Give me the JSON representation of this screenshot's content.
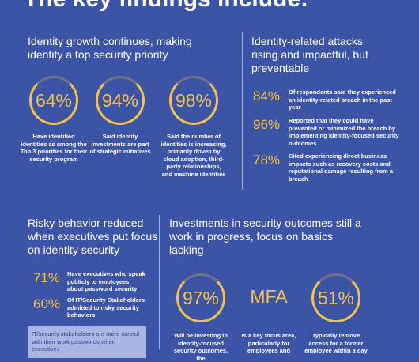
{
  "header": {
    "title": "The key findings include:"
  },
  "sections": [
    {
      "heading": "Identity growth continues, making identity a top security priority",
      "stats": [
        {
          "value": "64%",
          "text": "Have identified identities as among the Top 3 priorities for their security program"
        },
        {
          "value": "94%",
          "text": "Said identity investments are part of strategic initiatives"
        },
        {
          "value": "98%",
          "text": "Said the number of identities is increasing, primarily driven by cloud adoption, third-party relationships, and machine identities"
        }
      ]
    },
    {
      "heading": "Identity-related attacks rising and impactful, but preventable",
      "stats": [
        {
          "value": "84%",
          "text": "Of respondents said they experienced an identity-related breach in the past year"
        },
        {
          "value": "96%",
          "text": "Reported that they could have prevented or minimized the breach by implementing identity-focused security outcomes"
        },
        {
          "value": "78%",
          "text": "Cited experiencing direct business impacts such as recovery costs and reputational damage resulting from a breach"
        }
      ]
    },
    {
      "heading": "Risky behavior reduced when executives put focus on identity security",
      "stats": [
        {
          "value": "71%",
          "text": "Have executives who speak publicly to employees about password security"
        },
        {
          "value": "60%",
          "text": "Of IT/Security Stakeholders admitted to risky security behaviors"
        }
      ],
      "note": "IT/security stakeholders are more careful with their work passwords when executives"
    },
    {
      "heading": "Investments in security outcomes still a work in progress, focus on basics lacking",
      "stats": [
        {
          "value": "97%",
          "text": "Will be investing in identity-focused security outcomes, the"
        },
        {
          "value": "MFA",
          "text": "Is a key focus area, particularly for employees and"
        },
        {
          "value": "51%",
          "text": "Typically remove access for a former employee within a day"
        }
      ]
    }
  ]
}
